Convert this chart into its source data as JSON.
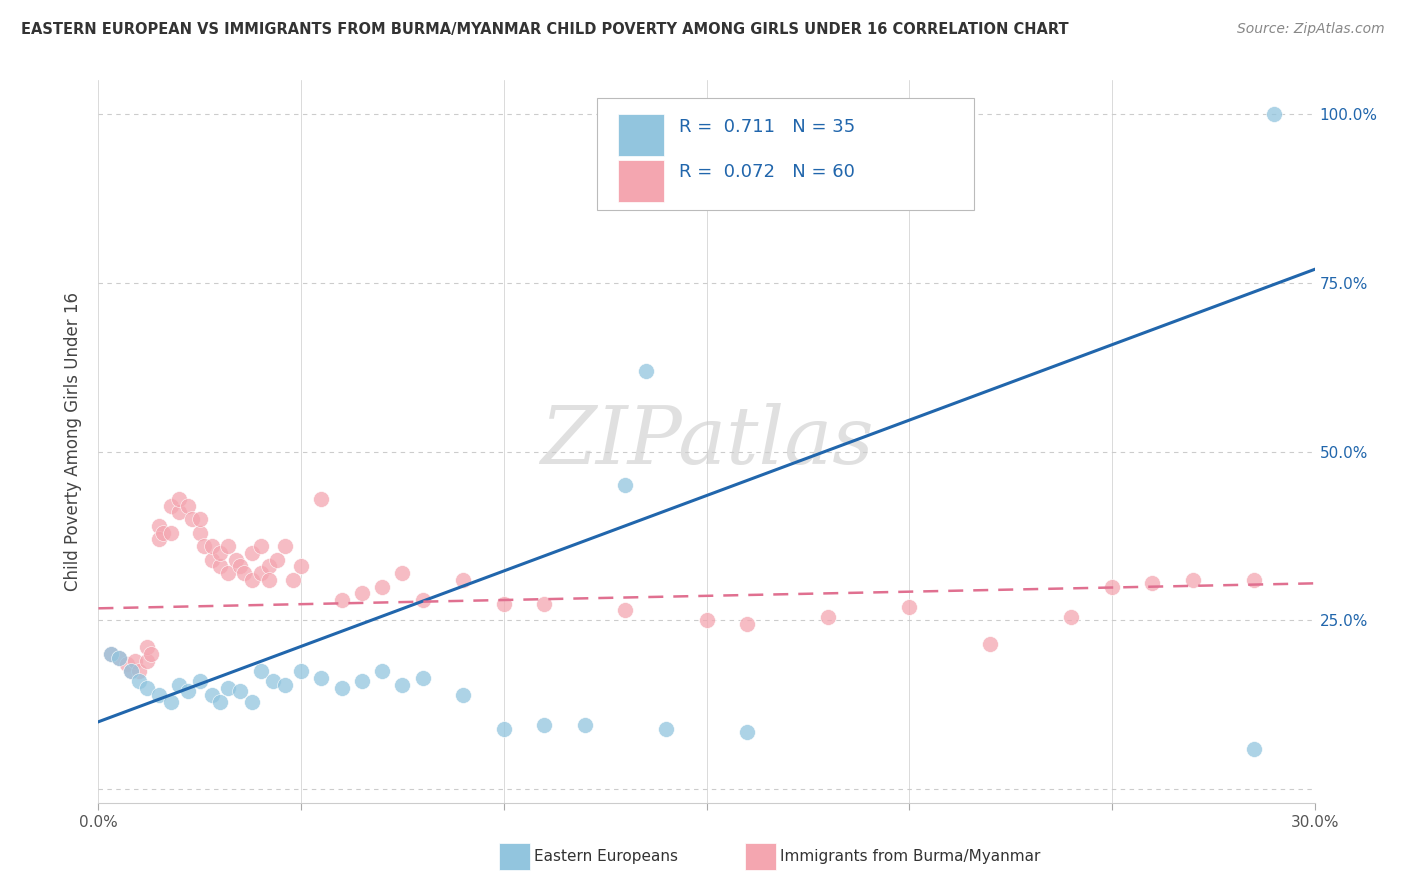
{
  "title": "EASTERN EUROPEAN VS IMMIGRANTS FROM BURMA/MYANMAR CHILD POVERTY AMONG GIRLS UNDER 16 CORRELATION CHART",
  "source": "Source: ZipAtlas.com",
  "ylabel": "Child Poverty Among Girls Under 16",
  "xlim": [
    0.0,
    0.3
  ],
  "ylim": [
    -0.02,
    1.05
  ],
  "ytick_vals": [
    0.0,
    0.25,
    0.5,
    0.75,
    1.0
  ],
  "xtick_vals": [
    0.0,
    0.05,
    0.1,
    0.15,
    0.2,
    0.25,
    0.3
  ],
  "blue_color": "#92c5de",
  "pink_color": "#f4a6b0",
  "blue_scatter_alpha": 0.75,
  "pink_scatter_alpha": 0.75,
  "blue_line_color": "#2166ac",
  "pink_line_color": "#e07090",
  "watermark": "ZIPatlas",
  "legend_R_blue": "0.711",
  "legend_N_blue": "35",
  "legend_R_pink": "0.072",
  "legend_N_pink": "60",
  "blue_scatter_x": [
    0.003,
    0.005,
    0.008,
    0.01,
    0.012,
    0.015,
    0.018,
    0.02,
    0.022,
    0.025,
    0.028,
    0.03,
    0.032,
    0.035,
    0.038,
    0.04,
    0.043,
    0.046,
    0.05,
    0.055,
    0.06,
    0.065,
    0.07,
    0.075,
    0.08,
    0.09,
    0.1,
    0.11,
    0.12,
    0.14,
    0.16,
    0.13,
    0.135,
    0.285,
    0.29
  ],
  "blue_scatter_y": [
    0.2,
    0.195,
    0.175,
    0.16,
    0.15,
    0.14,
    0.13,
    0.155,
    0.145,
    0.16,
    0.14,
    0.13,
    0.15,
    0.145,
    0.13,
    0.175,
    0.16,
    0.155,
    0.175,
    0.165,
    0.15,
    0.16,
    0.175,
    0.155,
    0.165,
    0.14,
    0.09,
    0.095,
    0.095,
    0.09,
    0.085,
    0.45,
    0.62,
    0.06,
    1.0
  ],
  "pink_scatter_x": [
    0.003,
    0.005,
    0.007,
    0.008,
    0.009,
    0.01,
    0.012,
    0.012,
    0.013,
    0.015,
    0.015,
    0.016,
    0.018,
    0.018,
    0.02,
    0.02,
    0.022,
    0.023,
    0.025,
    0.025,
    0.026,
    0.028,
    0.028,
    0.03,
    0.03,
    0.032,
    0.032,
    0.034,
    0.035,
    0.036,
    0.038,
    0.038,
    0.04,
    0.04,
    0.042,
    0.042,
    0.044,
    0.046,
    0.048,
    0.05,
    0.055,
    0.06,
    0.065,
    0.07,
    0.075,
    0.08,
    0.09,
    0.1,
    0.11,
    0.13,
    0.15,
    0.16,
    0.18,
    0.2,
    0.22,
    0.24,
    0.25,
    0.26,
    0.27,
    0.285
  ],
  "pink_scatter_y": [
    0.2,
    0.195,
    0.185,
    0.175,
    0.19,
    0.175,
    0.19,
    0.21,
    0.2,
    0.39,
    0.37,
    0.38,
    0.38,
    0.42,
    0.41,
    0.43,
    0.42,
    0.4,
    0.38,
    0.4,
    0.36,
    0.34,
    0.36,
    0.33,
    0.35,
    0.32,
    0.36,
    0.34,
    0.33,
    0.32,
    0.31,
    0.35,
    0.36,
    0.32,
    0.33,
    0.31,
    0.34,
    0.36,
    0.31,
    0.33,
    0.43,
    0.28,
    0.29,
    0.3,
    0.32,
    0.28,
    0.31,
    0.275,
    0.275,
    0.265,
    0.25,
    0.245,
    0.255,
    0.27,
    0.215,
    0.255,
    0.3,
    0.305,
    0.31,
    0.31
  ],
  "blue_line_x": [
    0.0,
    0.3
  ],
  "blue_line_y": [
    0.1,
    0.77
  ],
  "pink_line_x": [
    0.0,
    0.3
  ],
  "pink_line_y": [
    0.268,
    0.305
  ],
  "background_color": "#ffffff",
  "grid_color": "#cccccc",
  "scatter_size": 130
}
